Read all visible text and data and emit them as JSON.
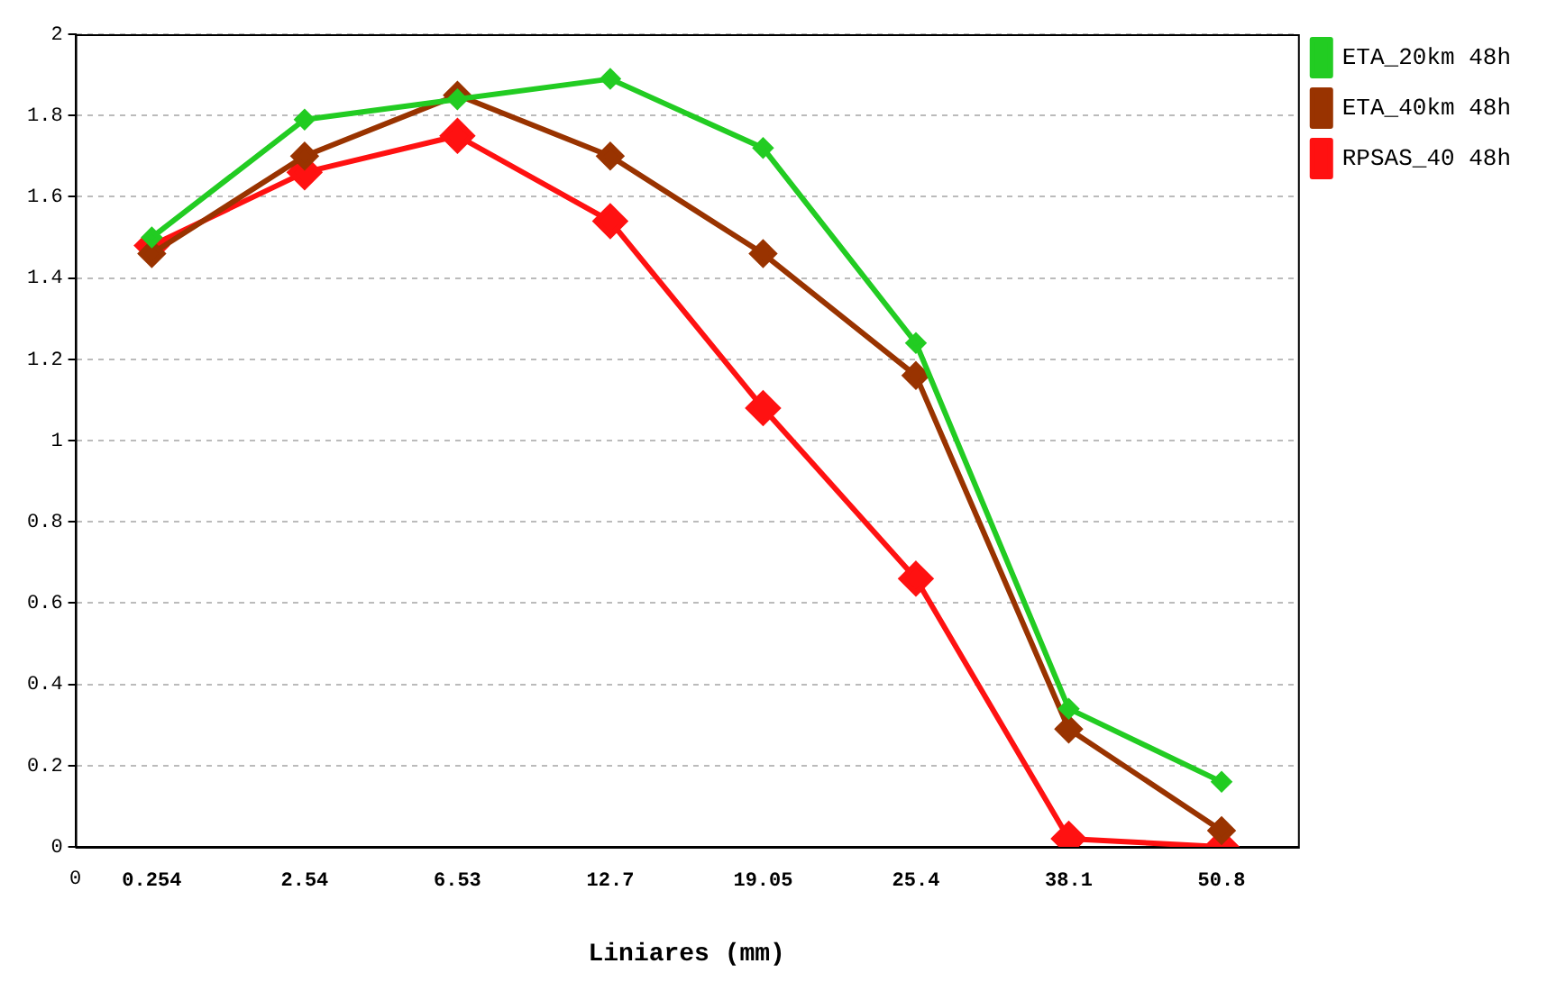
{
  "chart_data": {
    "type": "line",
    "xlabel": "Liniares (mm)",
    "categories": [
      "0.254",
      "2.54",
      "6.53",
      "12.7",
      "19.05",
      "25.4",
      "38.1",
      "50.8"
    ],
    "series": [
      {
        "name": "ETA_20km 48h",
        "color": "#22cc22",
        "values": [
          1.5,
          1.79,
          1.84,
          1.89,
          1.72,
          1.24,
          0.34,
          0.16
        ]
      },
      {
        "name": "ETA_40km 48h",
        "color": "#993300",
        "values": [
          1.46,
          1.7,
          1.85,
          1.7,
          1.46,
          1.16,
          0.29,
          0.04
        ]
      },
      {
        "name": "RPSAS_40 48h",
        "color": "#ff1111",
        "values": [
          1.48,
          1.66,
          1.75,
          1.54,
          1.08,
          0.66,
          0.02,
          0
        ]
      }
    ],
    "ylim": [
      0,
      2
    ],
    "yticks": [
      0,
      0.2,
      0.4,
      0.6,
      0.8,
      1,
      1.2,
      1.4,
      1.6,
      1.8,
      2
    ],
    "grid": "y",
    "legend": "top right",
    "marker": "diamond",
    "line_style": "solid",
    "annotations": [
      "0"
    ]
  }
}
